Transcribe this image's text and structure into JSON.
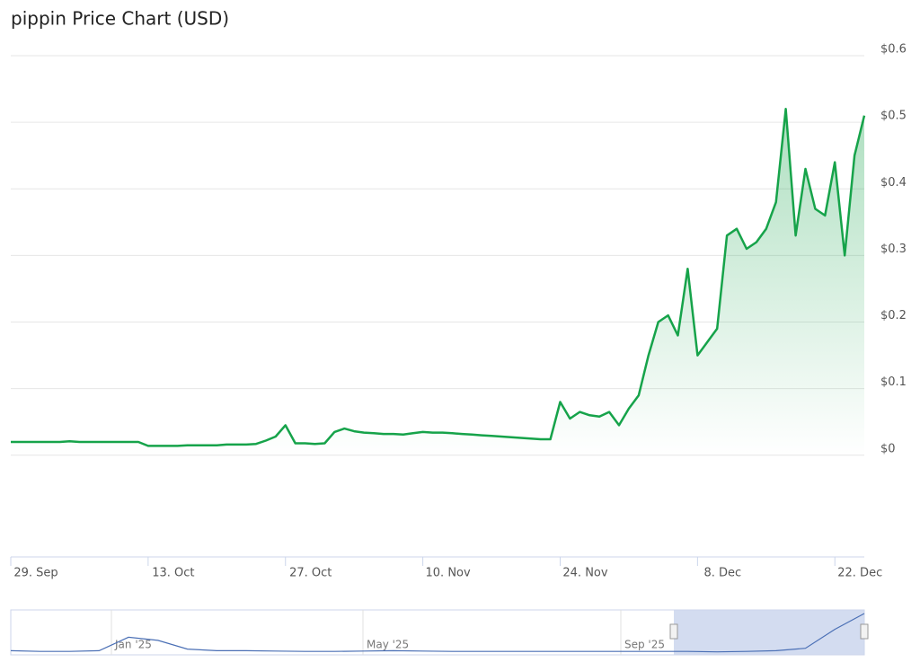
{
  "chart_data": {
    "type": "area",
    "title": "pippin Price Chart (USD)",
    "x": [
      "2025-09-29",
      "2025-09-30",
      "2025-10-01",
      "2025-10-02",
      "2025-10-03",
      "2025-10-04",
      "2025-10-05",
      "2025-10-06",
      "2025-10-07",
      "2025-10-08",
      "2025-10-09",
      "2025-10-10",
      "2025-10-11",
      "2025-10-12",
      "2025-10-13",
      "2025-10-14",
      "2025-10-15",
      "2025-10-16",
      "2025-10-17",
      "2025-10-18",
      "2025-10-19",
      "2025-10-20",
      "2025-10-21",
      "2025-10-22",
      "2025-10-23",
      "2025-10-24",
      "2025-10-25",
      "2025-10-26",
      "2025-10-27",
      "2025-10-28",
      "2025-10-29",
      "2025-10-30",
      "2025-10-31",
      "2025-11-01",
      "2025-11-02",
      "2025-11-03",
      "2025-11-04",
      "2025-11-05",
      "2025-11-06",
      "2025-11-07",
      "2025-11-08",
      "2025-11-09",
      "2025-11-10",
      "2025-11-11",
      "2025-11-12",
      "2025-11-13",
      "2025-11-14",
      "2025-11-15",
      "2025-11-16",
      "2025-11-17",
      "2025-11-18",
      "2025-11-19",
      "2025-11-20",
      "2025-11-21",
      "2025-11-22",
      "2025-11-23",
      "2025-11-24",
      "2025-11-25",
      "2025-11-26",
      "2025-11-27",
      "2025-11-28",
      "2025-11-29",
      "2025-11-30",
      "2025-12-01",
      "2025-12-02",
      "2025-12-03",
      "2025-12-04",
      "2025-12-05",
      "2025-12-06",
      "2025-12-07",
      "2025-12-08",
      "2025-12-09",
      "2025-12-10",
      "2025-12-11",
      "2025-12-12",
      "2025-12-13",
      "2025-12-14",
      "2025-12-15",
      "2025-12-16",
      "2025-12-17",
      "2025-12-18",
      "2025-12-19",
      "2025-12-20",
      "2025-12-21",
      "2025-12-22",
      "2025-12-23",
      "2025-12-24",
      "2025-12-25"
    ],
    "series": [
      {
        "name": "pippin",
        "color": "#16a34a",
        "values": [
          0.02,
          0.02,
          0.02,
          0.02,
          0.02,
          0.02,
          0.021,
          0.02,
          0.02,
          0.02,
          0.02,
          0.02,
          0.02,
          0.02,
          0.014,
          0.014,
          0.014,
          0.014,
          0.015,
          0.015,
          0.015,
          0.015,
          0.016,
          0.016,
          0.016,
          0.017,
          0.022,
          0.028,
          0.045,
          0.018,
          0.018,
          0.017,
          0.018,
          0.035,
          0.04,
          0.036,
          0.034,
          0.033,
          0.032,
          0.032,
          0.031,
          0.033,
          0.035,
          0.034,
          0.034,
          0.033,
          0.032,
          0.031,
          0.03,
          0.029,
          0.028,
          0.027,
          0.026,
          0.025,
          0.024,
          0.024,
          0.08,
          0.055,
          0.065,
          0.06,
          0.058,
          0.065,
          0.045,
          0.07,
          0.09,
          0.15,
          0.2,
          0.21,
          0.18,
          0.28,
          0.15,
          0.17,
          0.19,
          0.33,
          0.34,
          0.31,
          0.32,
          0.34,
          0.38,
          0.52,
          0.33,
          0.43,
          0.37,
          0.36,
          0.44,
          0.3,
          0.45,
          0.51
        ]
      }
    ],
    "xlim": [
      "2025-09-29",
      "2025-12-25"
    ],
    "xticks": [
      {
        "value": "2025-09-29",
        "label": "29. Sep"
      },
      {
        "value": "2025-10-13",
        "label": "13. Oct"
      },
      {
        "value": "2025-10-27",
        "label": "27. Oct"
      },
      {
        "value": "2025-11-10",
        "label": "10. Nov"
      },
      {
        "value": "2025-11-24",
        "label": "24. Nov"
      },
      {
        "value": "2025-12-08",
        "label": "8. Dec"
      },
      {
        "value": "2025-12-22",
        "label": "22. Dec"
      }
    ],
    "ylim": [
      -0.15,
      0.6
    ],
    "yticks": [
      {
        "value": 0,
        "label": "$0"
      },
      {
        "value": 0.1,
        "label": "$0.1"
      },
      {
        "value": 0.2,
        "label": "$0.2"
      },
      {
        "value": 0.3,
        "label": "$0.3"
      },
      {
        "value": 0.4,
        "label": "$0.4"
      },
      {
        "value": 0.5,
        "label": "$0.5"
      },
      {
        "value": 0.6,
        "label": "$0.6"
      }
    ],
    "grid": true,
    "navigator": {
      "labels": [
        "Jan '25",
        "May '25",
        "Sep '25"
      ],
      "values": [
        0.03,
        0.02,
        0.02,
        0.03,
        0.2,
        0.16,
        0.05,
        0.03,
        0.03,
        0.025,
        0.02,
        0.02,
        0.025,
        0.03,
        0.025,
        0.02,
        0.02,
        0.02,
        0.02,
        0.02,
        0.02,
        0.02,
        0.02,
        0.02,
        0.015,
        0.02,
        0.03,
        0.06,
        0.3,
        0.5
      ]
    }
  }
}
